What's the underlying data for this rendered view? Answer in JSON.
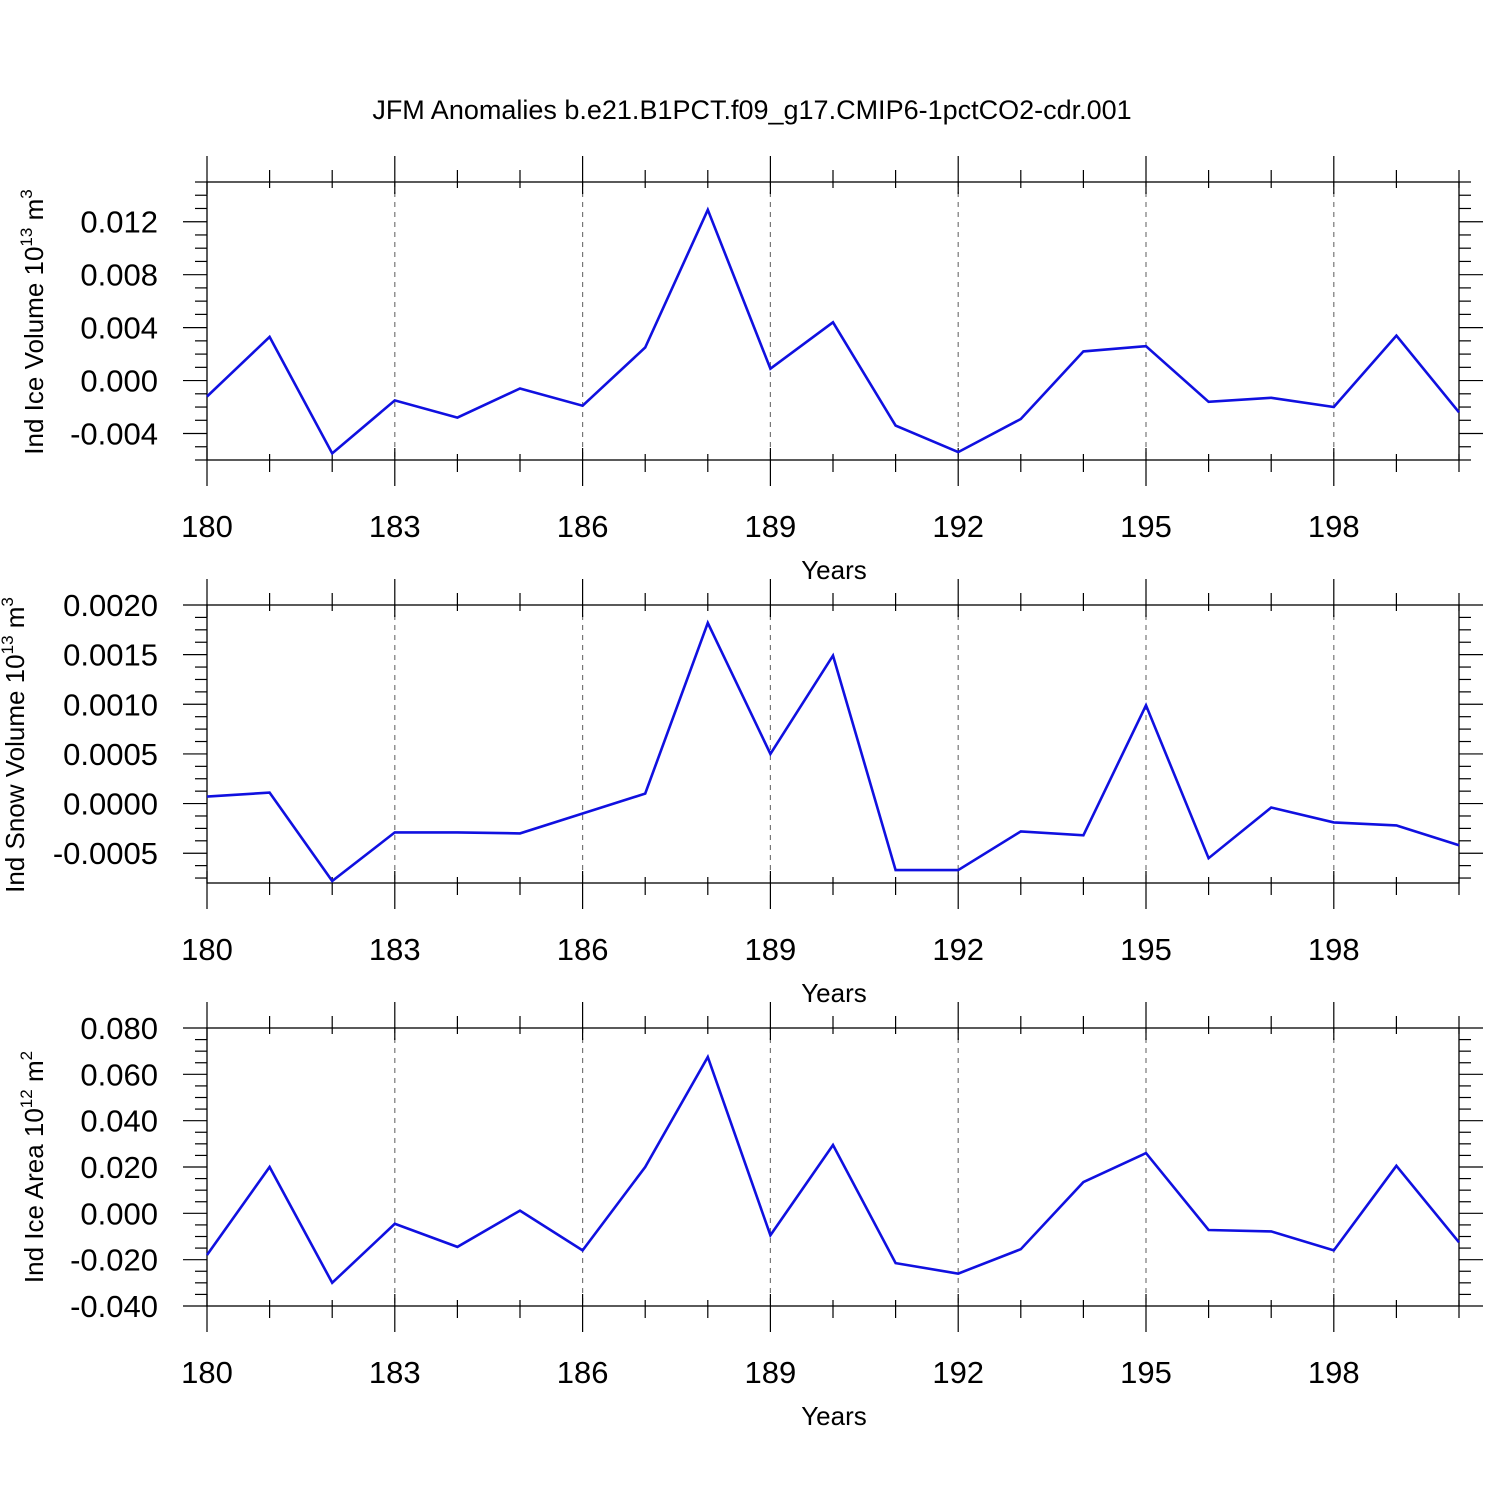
{
  "figure": {
    "title": "JFM Anomalies b.e21.B1PCT.f09_g17.CMIP6-1pctCO2-cdr.001",
    "line_color": "#1010e0"
  },
  "chart_data": [
    {
      "type": "line",
      "ylabel": "Ind Ice Volume 10",
      "ylabel_exp": "13",
      "ylabel_unit": "m",
      "ylabel_unit_exp": "3",
      "xlabel": "Years",
      "xlim": [
        180,
        200
      ],
      "ylim": [
        -0.006,
        0.015
      ],
      "xticks": [
        180,
        183,
        186,
        189,
        192,
        195,
        198
      ],
      "xtick_labels": [
        "180",
        "183",
        "186",
        "189",
        "192",
        "195",
        "198"
      ],
      "yticks": [
        -0.004,
        0.0,
        0.004,
        0.008,
        0.012
      ],
      "ytick_labels": [
        "-0.004",
        "0.000",
        "0.004",
        "0.008",
        "0.012"
      ],
      "grid": "x-dashed",
      "x": [
        180,
        181,
        182,
        183,
        184,
        185,
        186,
        187,
        188,
        189,
        190,
        191,
        192,
        193,
        194,
        195,
        196,
        197,
        198,
        199,
        200
      ],
      "series": [
        {
          "values": [
            -0.0012,
            0.0033,
            -0.0055,
            -0.0015,
            -0.0028,
            -0.0006,
            -0.0019,
            0.0025,
            0.0129,
            0.0009,
            0.0044,
            -0.0034,
            -0.0054,
            -0.0029,
            0.0022,
            0.0026,
            -0.0016,
            -0.0013,
            -0.002,
            0.0034,
            -0.0024
          ]
        }
      ]
    },
    {
      "type": "line",
      "ylabel": "Ind Snow Volume 10",
      "ylabel_exp": "13",
      "ylabel_unit": "m",
      "ylabel_unit_exp": "3",
      "xlabel": "Years",
      "xlim": [
        180,
        200
      ],
      "ylim": [
        -0.0008,
        0.002
      ],
      "xticks": [
        180,
        183,
        186,
        189,
        192,
        195,
        198
      ],
      "xtick_labels": [
        "180",
        "183",
        "186",
        "189",
        "192",
        "195",
        "198"
      ],
      "yticks": [
        -0.0005,
        0.0,
        0.0005,
        0.001,
        0.0015,
        0.002
      ],
      "ytick_labels": [
        "-0.0005",
        "0.0000",
        "0.0005",
        "0.0010",
        "0.0015",
        "0.0020"
      ],
      "grid": "x-dashed",
      "x": [
        180,
        181,
        182,
        183,
        184,
        185,
        186,
        187,
        188,
        189,
        190,
        191,
        192,
        193,
        194,
        195,
        196,
        197,
        198,
        199,
        200
      ],
      "series": [
        {
          "values": [
            7e-05,
            0.00011,
            -0.00078,
            -0.00029,
            -0.00029,
            -0.0003,
            -0.0001,
            0.0001,
            0.00182,
            0.0005,
            0.00149,
            -0.00067,
            -0.00067,
            -0.00028,
            -0.00032,
            0.00099,
            -0.00055,
            -4e-05,
            -0.00019,
            -0.00022,
            -0.00042
          ]
        }
      ]
    },
    {
      "type": "line",
      "ylabel": "Ind Ice Area 10",
      "ylabel_exp": "12",
      "ylabel_unit": "m",
      "ylabel_unit_exp": "2",
      "xlabel": "Years",
      "xlim": [
        180,
        200
      ],
      "ylim": [
        -0.04,
        0.08
      ],
      "xticks": [
        180,
        183,
        186,
        189,
        192,
        195,
        198
      ],
      "xtick_labels": [
        "180",
        "183",
        "186",
        "189",
        "192",
        "195",
        "198"
      ],
      "yticks": [
        -0.04,
        -0.02,
        0.0,
        0.02,
        0.04,
        0.06,
        0.08
      ],
      "ytick_labels": [
        "-0.040",
        "-0.020",
        "0.000",
        "0.020",
        "0.040",
        "0.060",
        "0.080"
      ],
      "grid": "x-dashed",
      "x": [
        180,
        181,
        182,
        183,
        184,
        185,
        186,
        187,
        188,
        189,
        190,
        191,
        192,
        193,
        194,
        195,
        196,
        197,
        198,
        199,
        200
      ],
      "series": [
        {
          "values": [
            -0.018,
            0.02,
            -0.03,
            -0.0045,
            -0.0145,
            0.0012,
            -0.016,
            0.02,
            0.0675,
            -0.0095,
            0.0295,
            -0.0215,
            -0.026,
            -0.0155,
            0.0135,
            0.026,
            -0.0072,
            -0.0078,
            -0.016,
            0.0205,
            -0.0125
          ]
        }
      ]
    }
  ]
}
